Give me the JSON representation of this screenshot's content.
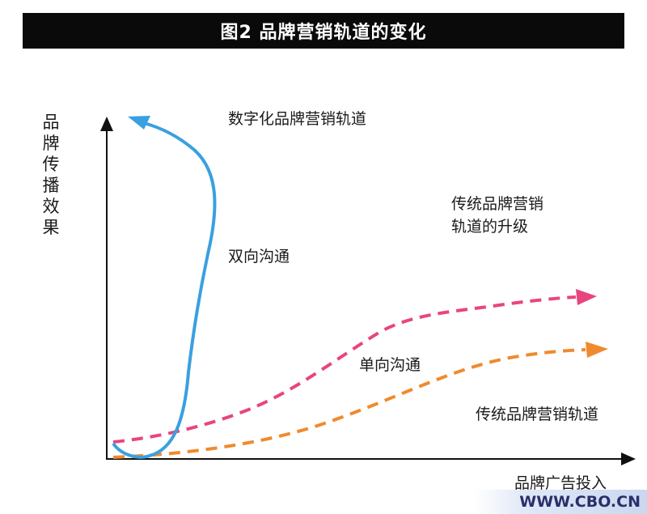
{
  "title": "图2  品牌营销轨道的变化",
  "y_axis_label": [
    "品",
    "牌",
    "传",
    "播",
    "效",
    "果"
  ],
  "x_axis_label": "品牌广告投入",
  "labels": {
    "digital_track": "数字化品牌营销轨道",
    "traditional_upgrade": [
      "传统品牌营销",
      "轨道的升级"
    ],
    "two_way": "双向沟通",
    "one_way": "单向沟通",
    "traditional_track": "传统品牌营销轨道"
  },
  "watermark": "WWW.CBO.CN",
  "colors": {
    "digital": "#3aa0e0",
    "upgrade": "#e8457e",
    "traditional": "#f08a2e",
    "axis": "#111111"
  }
}
